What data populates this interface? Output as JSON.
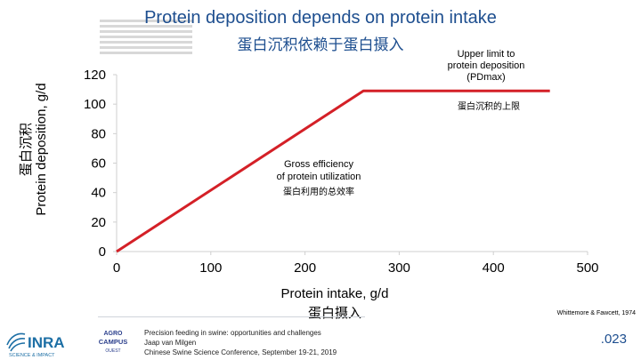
{
  "title": "Protein deposition depends on protein intake",
  "subtitle": "蛋白沉积依赖于蛋白摄入",
  "chart_data": {
    "type": "line",
    "xlabel": "Protein intake, g/d",
    "xlabel_cn": "蛋白摄入",
    "ylabel": "Protein deposition, g/d",
    "ylabel_cn": "蛋白沉积",
    "xlim": [
      0,
      500
    ],
    "ylim": [
      0,
      120
    ],
    "x_ticks": [
      0,
      100,
      200,
      300,
      400,
      500
    ],
    "y_ticks": [
      0,
      20,
      40,
      60,
      80,
      100,
      120
    ],
    "grid": false,
    "color": "#d42027",
    "series": [
      {
        "x": [
          0,
          262,
          460
        ],
        "y": [
          0,
          109,
          109
        ]
      }
    ],
    "annotations": {
      "upper": [
        "Upper limit to",
        "protein deposition",
        "(PDmax)"
      ],
      "upper_cn": "蛋白沉积的上限",
      "gross": [
        "Gross efficiency",
        "of protein utilization"
      ],
      "gross_cn": "蛋白利用的总效率"
    }
  },
  "citation": "Whittemore & Fawcett, 1974",
  "footer": {
    "line1": "Precision feeding in swine: opportunities and challenges",
    "line2": "Jaap van Milgen",
    "line3": "Chinese Swine Science Conference, September 19-21, 2019"
  },
  "logos": {
    "inra": "INRA",
    "inra_tagline": "SCIENCE & IMPACT",
    "campus_line1": "AGRO",
    "campus_line2": "CAMPUS",
    "campus_line3": "OUEST"
  },
  "slide_number": ".023"
}
